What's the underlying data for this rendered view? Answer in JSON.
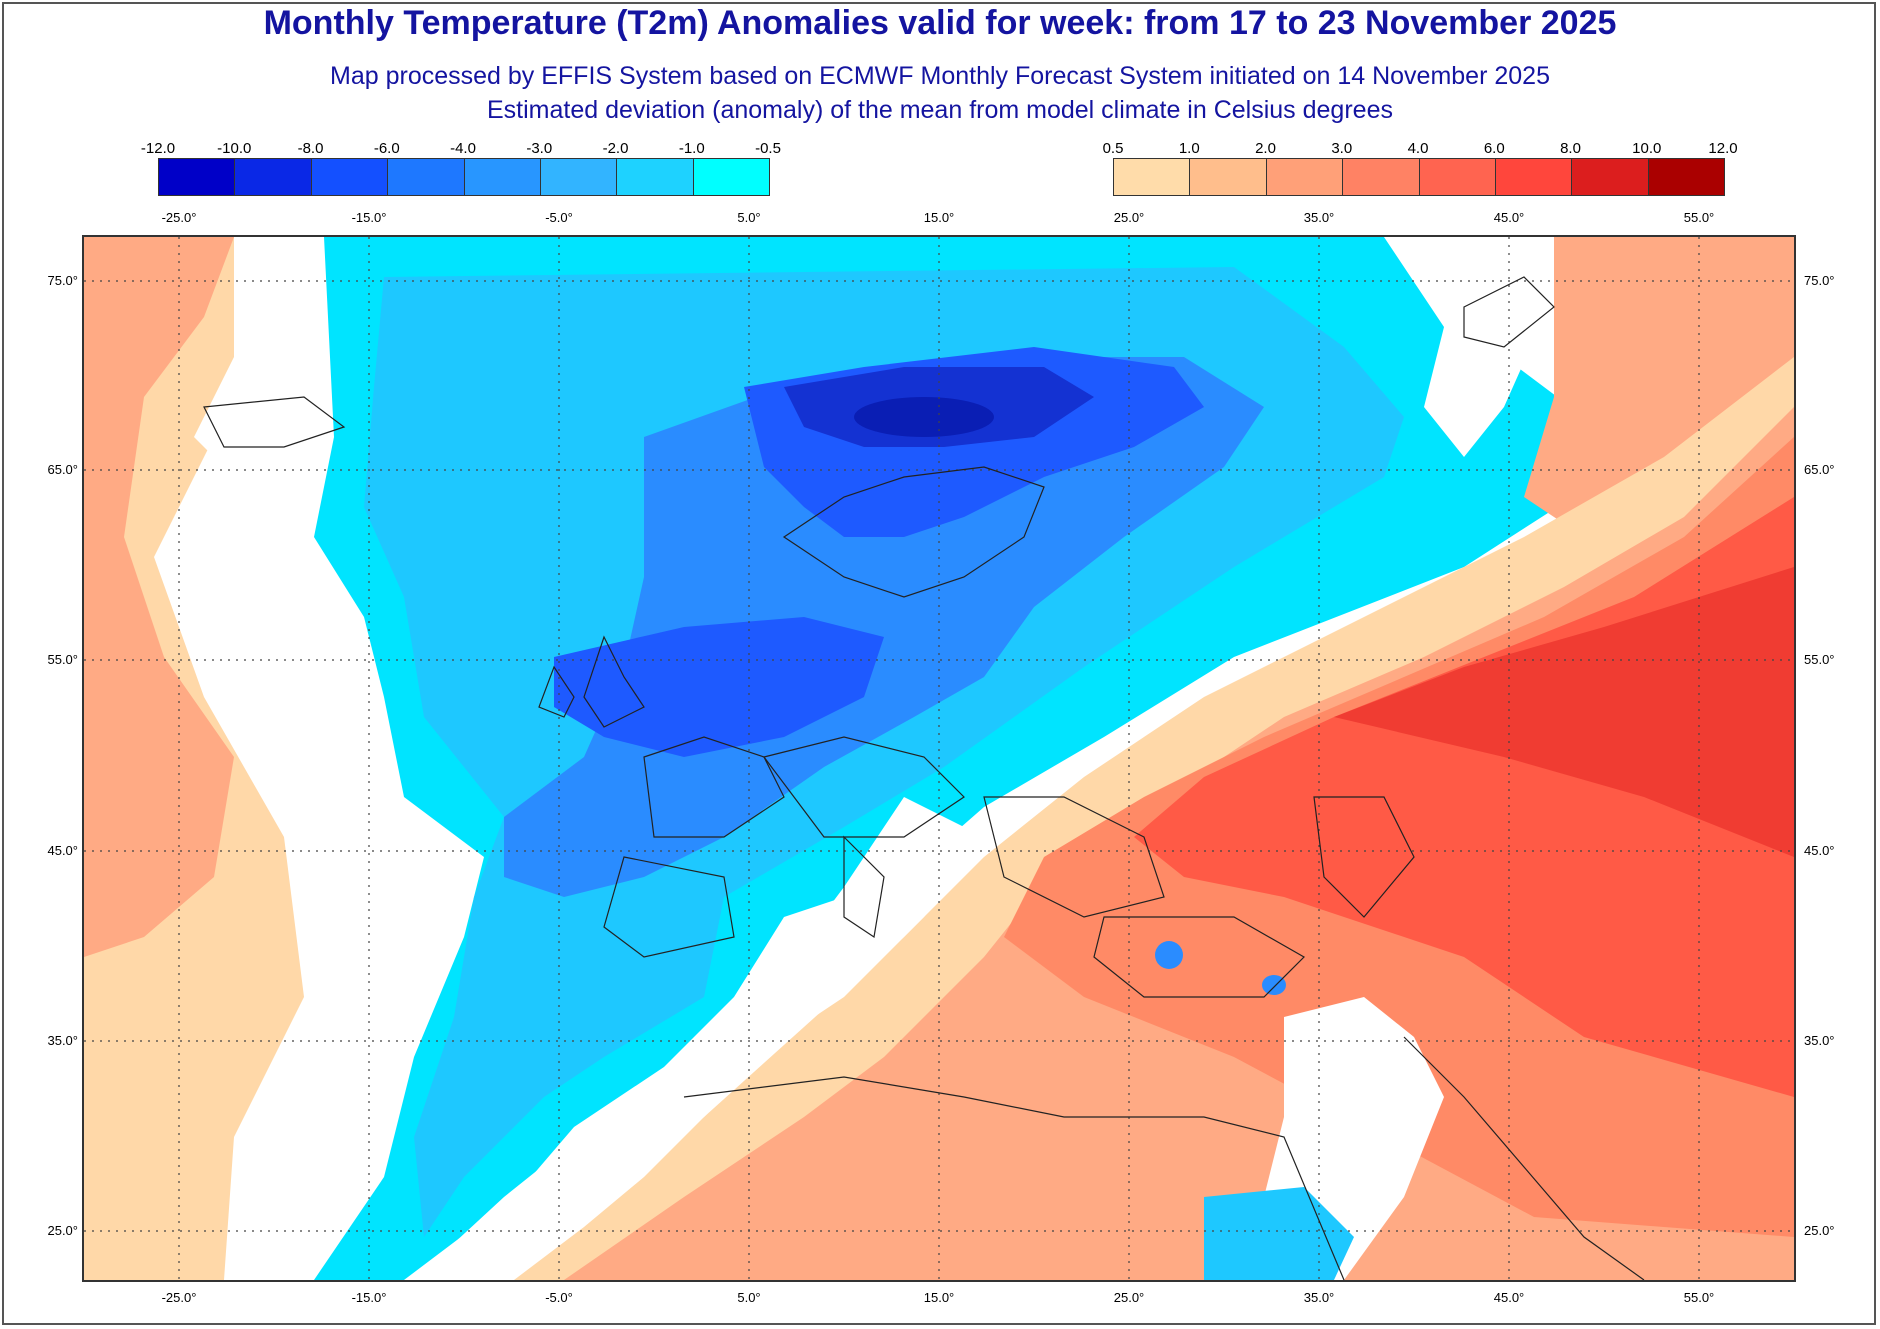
{
  "title": "Monthly Temperature (T2m) Anomalies valid for week: from 17 to 23 November 2025",
  "subtitle1": "Map processed by EFFIS System based on ECMWF Monthly Forecast System initiated on 14 November 2025",
  "subtitle2": "Estimated deviation (anomaly) of the mean from model climate in Celsius degrees",
  "legend": {
    "cold_ticks": [
      "-12.0",
      "-10.0",
      "-8.0",
      "-6.0",
      "-4.0",
      "-3.0",
      "-2.0",
      "-1.0",
      "-0.5"
    ],
    "warm_ticks": [
      "0.5",
      "1.0",
      "2.0",
      "3.0",
      "4.0",
      "6.0",
      "8.0",
      "10.0",
      "12.0"
    ],
    "cold_colors": [
      "#0000c8",
      "#0a28e6",
      "#1450ff",
      "#1e78ff",
      "#2896ff",
      "#32b4ff",
      "#1ed2ff",
      "#00ffff"
    ],
    "warm_colors": [
      "#ffdcaa",
      "#ffbe8c",
      "#ffa078",
      "#ff8264",
      "#ff6450",
      "#ff463c",
      "#dc1e1e",
      "#aa0000"
    ]
  },
  "lon_labels": [
    "-25.0°",
    "-15.0°",
    "-5.0°",
    "5.0°",
    "15.0°",
    "25.0°",
    "35.0°",
    "45.0°",
    "55.0°"
  ],
  "lat_labels": [
    "75.0°",
    "65.0°",
    "55.0°",
    "45.0°",
    "35.0°",
    "25.0°"
  ],
  "colors": {
    "title": "#1414a0",
    "deep_cold": "#1a3cdc",
    "mid_cold": "#2a8cff",
    "light_cold": "#1ec8ff",
    "cyan": "#00e4ff",
    "white": "#ffffff",
    "peach": "#ffd8a8",
    "orange": "#ffaa84",
    "salmon": "#ff8a66",
    "red": "#ff5a46",
    "deep_red": "#f03c32"
  }
}
